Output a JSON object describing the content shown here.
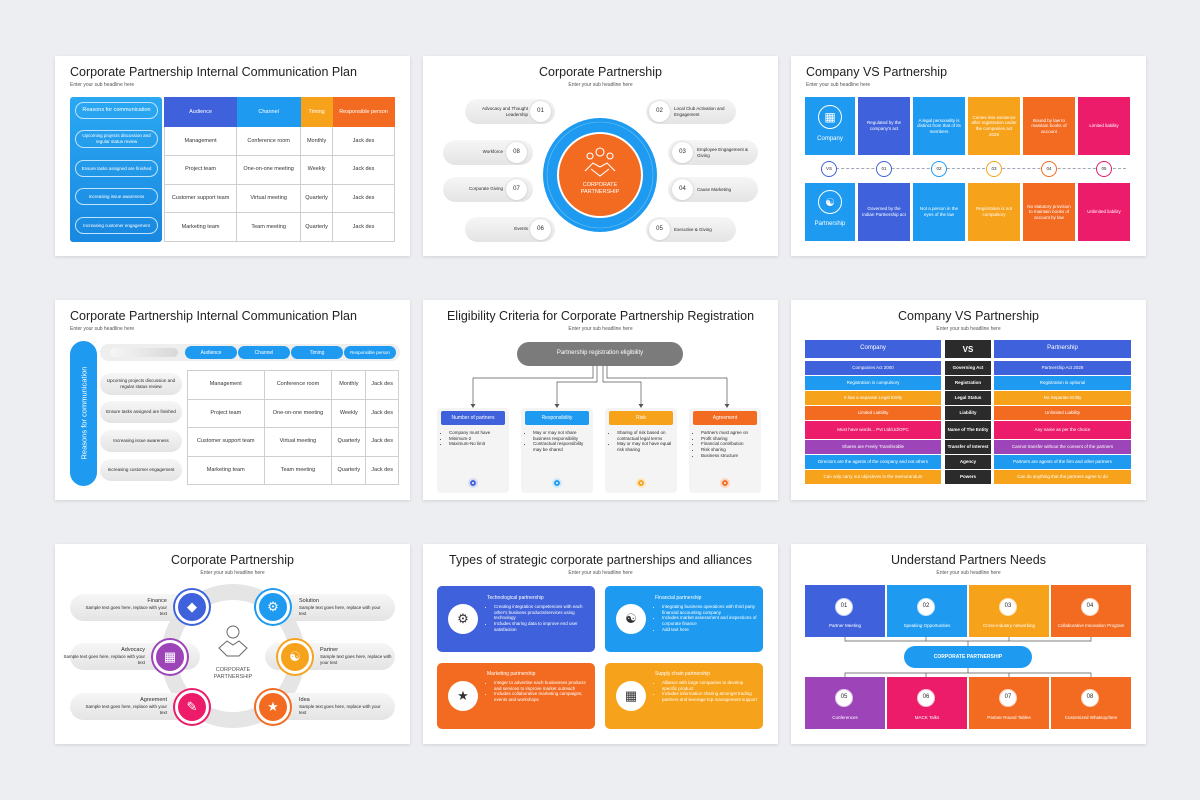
{
  "colors": {
    "blue": "#1e9bf0",
    "orange": "#f26b21",
    "yellow": "#f7a21b",
    "red": "#ff4d3a",
    "royal": "#3f62dc",
    "pink": "#e91e63",
    "purple": "#9c44b8",
    "teal": "#1aa2d8"
  },
  "s1": {
    "title": "Corporate Partnership Internal Communication Plan",
    "sub": "Enter your sub headline here",
    "reasons_label": "Reasons for communication",
    "reasons": [
      "Upcoming projects discussion and regular status review",
      "Ensure tasks assigned are finished",
      "Increasing issue awareness",
      "Increasing customer engagement"
    ],
    "headers": [
      "Audience",
      "Channel",
      "Timing",
      "Responsible person"
    ],
    "rows": [
      [
        "Management",
        "Conference room",
        "Monthly",
        "Jack des"
      ],
      [
        "Project team",
        "One-on-one meeting",
        "Weekly",
        "Jack des"
      ],
      [
        "Customer support team",
        "Virtual meeting",
        "Quarterly",
        "Jack des"
      ],
      [
        "Marketing team",
        "Team meeting",
        "Quarterly",
        "Jack des"
      ]
    ]
  },
  "s2": {
    "title": "Corporate Partnership",
    "sub": "Enter your sub headline here",
    "center": "CORPORATE PARTNERSHIP",
    "items": [
      {
        "n": "01",
        "label": "Advocacy and Thought Leadership"
      },
      {
        "n": "02",
        "label": "Local Club Activation and Engagement"
      },
      {
        "n": "03",
        "label": "Employee Engagement & Giving"
      },
      {
        "n": "04",
        "label": "Cause Marketing"
      },
      {
        "n": "05",
        "label": "Executive & Giving"
      },
      {
        "n": "06",
        "label": "Events"
      },
      {
        "n": "07",
        "label": "Corporate Giving"
      },
      {
        "n": "08",
        "label": "Workforce"
      }
    ]
  },
  "s3": {
    "title": "Company VS Partnership",
    "sub": "Enter your sub headline here",
    "company": "Company",
    "partnership": "Partnership",
    "vs": "VS",
    "nums": [
      "01",
      "02",
      "03",
      "04",
      "05"
    ],
    "top": [
      "Regulated by the company's act",
      "A legal personality is distinct from that of its members",
      "Comes into existence after registration under the companies act 2028",
      "Bound by law to maintain books of account",
      "Limited liability"
    ],
    "bottom": [
      "Governed by the Indian Partnership act",
      "Not a person in the eyes of the law",
      "Registration is not compulsory",
      "No statutory provision to maintain books of account by law",
      "Unlimited liability"
    ]
  },
  "s4": {
    "title": "Corporate Partnership Internal Communication Plan",
    "sub": "Enter your sub headline here",
    "side": "Reasons for communication",
    "headers": [
      "Audience",
      "Channel",
      "Timing",
      "Responsible person"
    ],
    "reasons": [
      "Upcoming projects discussion and regular status review",
      "Ensure tasks assigned are finished",
      "Increasing issue awareness",
      "Increasing customer engagement"
    ],
    "rows": [
      [
        "Management",
        "Conference room",
        "Monthly",
        "Jack des"
      ],
      [
        "Project team",
        "One-on-one meeting",
        "Weekly",
        "Jack des"
      ],
      [
        "Customer support team",
        "Virtual meeting",
        "Quarterly",
        "Jack des"
      ],
      [
        "Marketing team",
        "Team meeting",
        "Quarterly",
        "Jack des"
      ]
    ]
  },
  "s5": {
    "title": "Eligibility Criteria for Corporate Partnership Registration",
    "sub": "Enter your sub headline here",
    "root": "Partnership registration eligibility",
    "cards": [
      {
        "h": "Number of partners",
        "items": [
          "Company must have",
          "Minimum-2",
          "Maximum-No limit"
        ]
      },
      {
        "h": "Responsibility",
        "items": [
          "May or may not share business responsibility",
          "Contractual responsibility may be shared"
        ]
      },
      {
        "h": "Risk",
        "items": [
          "Sharing of risk based on contractual legal terms",
          "May or may not have equal risk sharing"
        ]
      },
      {
        "h": "Agreement",
        "items": [
          "Partners must agree on",
          "Profit sharing",
          "Financial contribution",
          "Risk sharing",
          "Business structure"
        ]
      }
    ]
  },
  "s6": {
    "title": "Company VS Partnership",
    "sub": "Enter your sub headline here",
    "company": "Company",
    "vs": "VS",
    "partnership": "Partnership",
    "rows": [
      [
        "Companies Act 2000",
        "Governing Act",
        "Partnership Act 2028"
      ],
      [
        "Registration is compulsory",
        "Registration",
        "Registration is optional"
      ],
      [
        "It has a separate Legal Entity",
        "Legal Status",
        "No Separate Entity"
      ],
      [
        "Limited Liability",
        "Liability",
        "Unlimited Liability"
      ],
      [
        "Must have words... Pvt Ltd/Ltd/OPC",
        "Name of The Entity",
        "Any name as per the choice"
      ],
      [
        "Shares are Freely Transferable",
        "Transfer of Interest",
        "Cannot transfer without the consent of the partners"
      ],
      [
        "Directors are the agents of the company and not others",
        "Agency",
        "Partners are agents of the firm and other partners"
      ],
      [
        "Can only carry out objectives in the memorandum",
        "Powers",
        "Can do anything that the partners agree to do"
      ]
    ]
  },
  "s7": {
    "title": "Corporate Partnership",
    "sub": "Enter your sub headline here",
    "center": "CORPORATE PARTNERSHIP",
    "desc": "Sample text goes here, replace with your text",
    "left": [
      "Finance",
      "Advocacy",
      "Agreement"
    ],
    "right": [
      "Solution",
      "Partner",
      "Idea"
    ]
  },
  "s8": {
    "title": "Types of strategic corporate partnerships and alliances",
    "sub": "Enter your sub headline here",
    "cards": [
      {
        "h": "Technological partnership",
        "items": [
          "Creating integration competencies with each other's business products/services using technology",
          "Includes sharing data to improve end user satisfaction"
        ]
      },
      {
        "h": "Financial partnership",
        "items": [
          "Integrating business operations with third party financial accounting company",
          "Includes market assessment and inspections of corporate finance",
          "Add text here"
        ]
      },
      {
        "h": "Marketing partnership",
        "items": [
          "Integer to advertise each businesses products and services to improve market outreach",
          "Includes collaborative marketing campaigns, events and workshops"
        ]
      },
      {
        "h": "Supply chain partnership",
        "items": [
          "Alliance with large companies to develop specific product",
          "Includes information sharing amongst trading partners and leverage top management support"
        ]
      }
    ]
  },
  "s9": {
    "title": "Understand Partners Needs",
    "sub": "Enter your sub headline here",
    "center": "CORPORATE PARTNERSHIP",
    "top": [
      {
        "n": "01",
        "t": "Partner Meeting"
      },
      {
        "n": "02",
        "t": "Speaking Opportunities"
      },
      {
        "n": "03",
        "t": "Cross-industry networking"
      },
      {
        "n": "04",
        "t": "Collaborative Innovation Program"
      }
    ],
    "bottom": [
      {
        "n": "05",
        "t": "Conferences"
      },
      {
        "n": "06",
        "t": "MACK Talks"
      },
      {
        "n": "07",
        "t": "Partner Round Tables"
      },
      {
        "n": "08",
        "t": "Customized Whatsoy/Item"
      }
    ]
  }
}
